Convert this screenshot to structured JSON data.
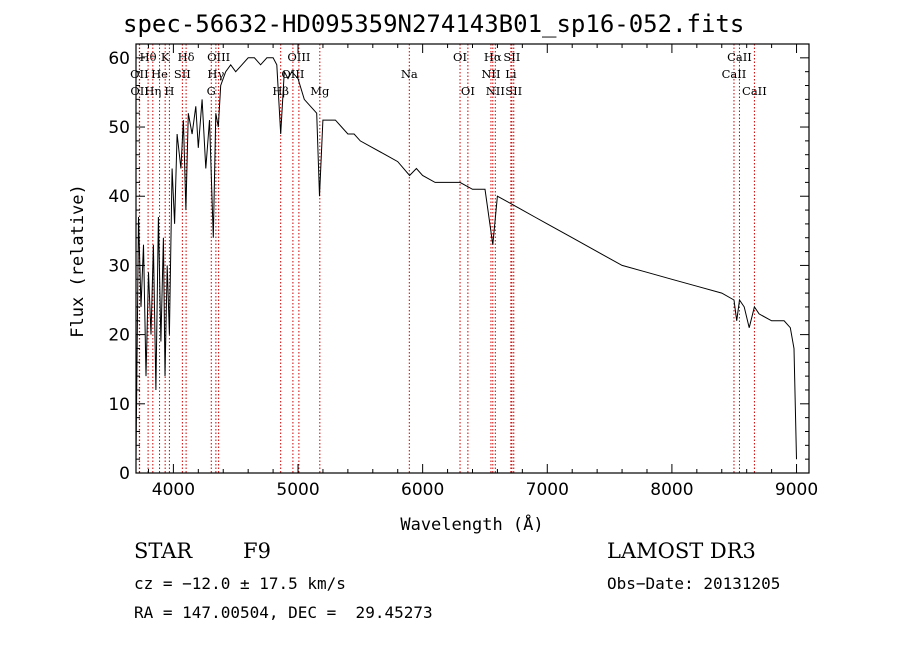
{
  "colors": {
    "line_marker": "#cc0000",
    "spectrum": "#000000",
    "axes": "#000000",
    "background": "#ffffff"
  },
  "chart_data": {
    "type": "line",
    "title": "spec-56632-HD095359N274143B01_sp16-052.fits",
    "xlabel": "Wavelength (Å)",
    "ylabel": "Flux (relative)",
    "xlim": [
      3700,
      9100
    ],
    "ylim": [
      0,
      62
    ],
    "xticks": [
      4000,
      5000,
      6000,
      7000,
      8000,
      9000
    ],
    "xtick_labels": [
      "4000",
      "5000",
      "6000",
      "7000",
      "8000",
      "9000"
    ],
    "yticks": [
      0,
      10,
      20,
      30,
      40,
      50,
      60
    ],
    "ytick_labels": [
      "0",
      "10",
      "20",
      "30",
      "40",
      "50",
      "60"
    ],
    "series": [
      {
        "name": "flux",
        "x": [
          3700,
          3720,
          3740,
          3760,
          3780,
          3800,
          3820,
          3840,
          3860,
          3880,
          3900,
          3920,
          3933,
          3950,
          3968,
          3990,
          4010,
          4030,
          4060,
          4080,
          4100,
          4120,
          4150,
          4180,
          4200,
          4230,
          4260,
          4290,
          4320,
          4340,
          4360,
          4380,
          4420,
          4460,
          4500,
          4550,
          4600,
          4650,
          4700,
          4750,
          4800,
          4830,
          4861,
          4890,
          4920,
          4950,
          5000,
          5050,
          5100,
          5150,
          5172,
          5200,
          5250,
          5300,
          5350,
          5400,
          5450,
          5500,
          5600,
          5700,
          5800,
          5895,
          5950,
          6000,
          6100,
          6200,
          6300,
          6400,
          6500,
          6563,
          6600,
          6700,
          6800,
          6900,
          7000,
          7200,
          7400,
          7600,
          7800,
          8000,
          8200,
          8400,
          8498,
          8520,
          8542,
          8580,
          8620,
          8662,
          8700,
          8800,
          8900,
          8950,
          8980,
          9000
        ],
        "values": [
          2,
          37,
          24,
          33,
          14,
          29,
          20,
          33,
          12,
          37,
          19,
          34,
          14,
          30,
          20,
          44,
          36,
          49,
          44,
          51,
          38,
          52,
          49,
          53,
          47,
          54,
          44,
          51,
          34,
          52,
          50,
          56,
          58,
          59,
          58,
          59,
          60,
          60,
          59,
          60,
          60,
          59,
          49,
          58,
          57,
          58,
          57,
          54,
          53,
          52,
          40,
          51,
          51,
          51,
          50,
          49,
          49,
          48,
          47,
          46,
          45,
          43,
          44,
          43,
          42,
          42,
          42,
          41,
          41,
          33,
          40,
          39,
          38,
          37,
          36,
          34,
          32,
          30,
          29,
          28,
          27,
          26,
          25,
          22,
          25,
          24,
          21,
          24,
          23,
          22,
          22,
          21,
          18,
          2
        ]
      }
    ],
    "line_markers": [
      {
        "label": "Hθ",
        "wave": 3797,
        "row": 1
      },
      {
        "label": "OII",
        "wave": 3727,
        "row": 2
      },
      {
        "label": "OII",
        "wave": 3729,
        "row": 3
      },
      {
        "label": "Hη",
        "wave": 3835,
        "row": 3
      },
      {
        "label": "He",
        "wave": 3889,
        "row": 2
      },
      {
        "label": "K",
        "wave": 3934,
        "row": 1
      },
      {
        "label": "H",
        "wave": 3968,
        "row": 3
      },
      {
        "label": "SII",
        "wave": 4072,
        "row": 2
      },
      {
        "label": "Hδ",
        "wave": 4102,
        "row": 1
      },
      {
        "label": "OIII",
        "wave": 4363,
        "row": 1
      },
      {
        "label": "Hγ",
        "wave": 4341,
        "row": 2
      },
      {
        "label": "G",
        "wave": 4304,
        "row": 3
      },
      {
        "label": "Hβ",
        "wave": 4861,
        "row": 3
      },
      {
        "label": "OIII",
        "wave": 4959,
        "row": 2
      },
      {
        "label": "OIII",
        "wave": 5007,
        "row": 1
      },
      {
        "label": "Mg",
        "wave": 5175,
        "row": 3
      },
      {
        "label": "Na",
        "wave": 5893,
        "row": 2
      },
      {
        "label": "OI",
        "wave": 6300,
        "row": 1
      },
      {
        "label": "OI",
        "wave": 6363,
        "row": 3
      },
      {
        "label": "NII",
        "wave": 6548,
        "row": 2
      },
      {
        "label": "NII",
        "wave": 6583,
        "row": 3
      },
      {
        "label": "Hα",
        "wave": 6563,
        "row": 1
      },
      {
        "label": "Li",
        "wave": 6708,
        "row": 2
      },
      {
        "label": "SII",
        "wave": 6716,
        "row": 1
      },
      {
        "label": "SII",
        "wave": 6731,
        "row": 3
      },
      {
        "label": "CaII",
        "wave": 8498,
        "row": 2
      },
      {
        "label": "CaII",
        "wave": 8542,
        "row": 1
      },
      {
        "label": "CaII",
        "wave": 8662,
        "row": 3
      }
    ]
  },
  "info": {
    "object_class": "STAR",
    "subclass": "F9",
    "survey": "LAMOST DR3",
    "redshift": "cz = −12.0 ± 17.5 km/s",
    "obs_date": "Obs−Date: 20131205",
    "coords": "RA = 147.00504, DEC =  29.45273"
  }
}
